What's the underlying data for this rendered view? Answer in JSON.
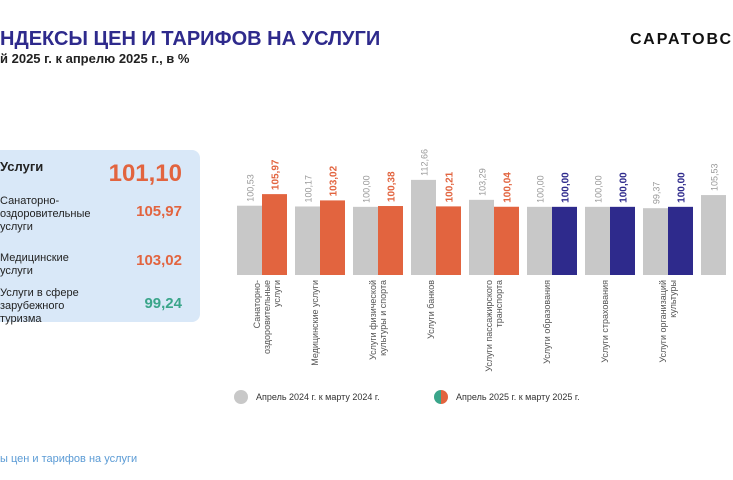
{
  "header": {
    "title": "НДЕКСЫ ЦЕН И ТАРИФОВ НА УСЛУГИ",
    "subtitle": "й 2025 г. к апрелю 2025 г., в %",
    "brand": "САРАТОВС"
  },
  "panel": {
    "rows": [
      {
        "label": "Услуги",
        "value": "101,10"
      },
      {
        "label": "Санаторно-оздоровительные услуги",
        "value": "105,97"
      },
      {
        "label": "Медицинские услуги",
        "value": "103,02"
      },
      {
        "label": "Услуги в сфере зарубежного туризма",
        "value": "99,24"
      }
    ]
  },
  "footer": "ы цен и тарифов на услуги",
  "chart_data": {
    "type": "bar",
    "ylim": [
      68,
      120
    ],
    "categories": [
      "Санаторно-оздоровительные услуги",
      "Медицинские услуги",
      "Услуги физической культуры и спорта",
      "Услуги банков",
      "Услуги пассажирского транспорта",
      "Услуги образования",
      "Услуги страхования",
      "Услуги организаций культуры",
      null
    ],
    "series": [
      {
        "name": "Апрель  2024 г. к  марту  2024 г.",
        "color": "#c8c8c8",
        "values": [
          100.53,
          100.17,
          100.0,
          112.66,
          103.29,
          100.0,
          100.0,
          99.37,
          105.53
        ],
        "value_labels": [
          "100,53",
          "100,17",
          "100,00",
          "112,66",
          "103,29",
          "100,00",
          "100,00",
          "99,37",
          "105,53"
        ]
      },
      {
        "name": "Апрель  2025 г. к  марту  2025 г.",
        "color": "#e2643f",
        "colors": [
          "#e2643f",
          "#e2643f",
          "#e2643f",
          "#e2643f",
          "#e2643f",
          "#2e2a8c",
          "#2e2a8c",
          "#2e2a8c",
          "#2e2a8c"
        ],
        "values": [
          105.97,
          103.02,
          100.38,
          100.21,
          100.04,
          100.0,
          100.0,
          100.0,
          null
        ],
        "value_labels": [
          "105,97",
          "103,02",
          "100,38",
          "100,21",
          "100,04",
          "100,00",
          "100,00",
          "100,00",
          null
        ]
      }
    ]
  }
}
